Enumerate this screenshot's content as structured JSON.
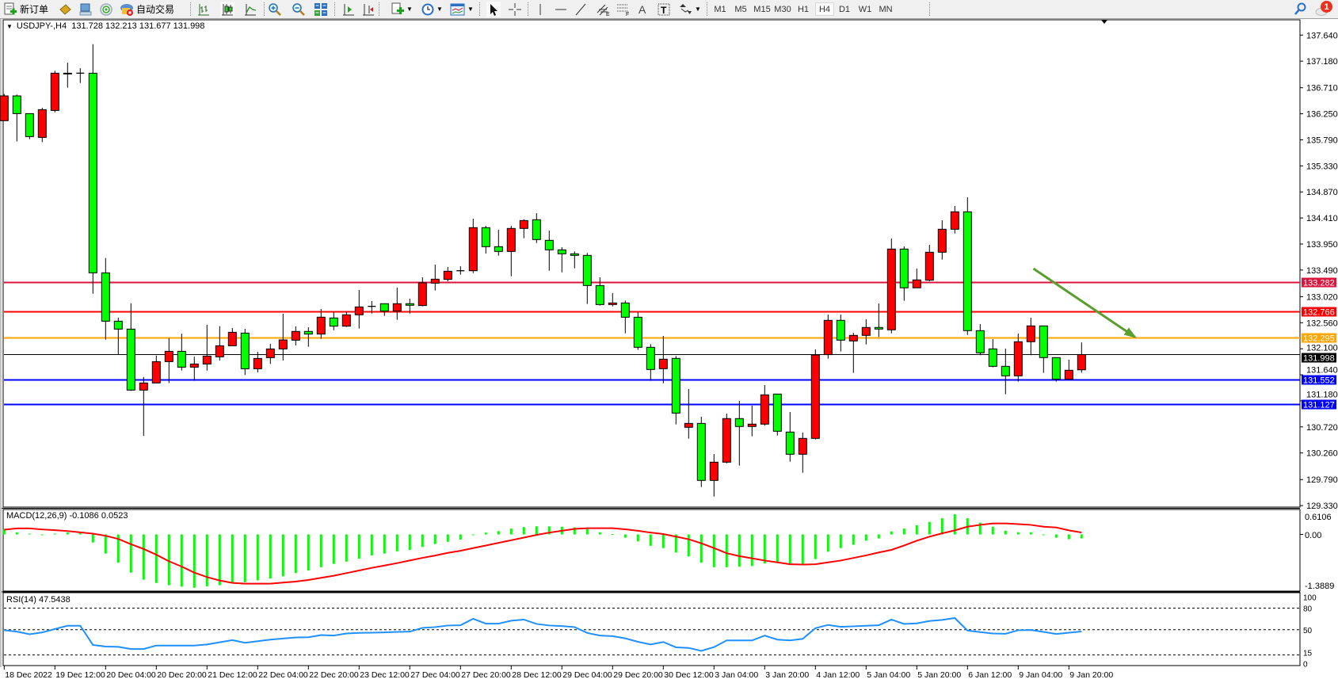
{
  "toolbar": {
    "new_order_label": "新订单",
    "auto_trade_label": "自动交易",
    "timeframes": [
      "M1",
      "M5",
      "M15",
      "M30",
      "H1",
      "H4",
      "D1",
      "W1",
      "MN"
    ],
    "active_timeframe": "H4",
    "notification_count": "1",
    "icons": [
      "new-order-icon",
      "gold-icon",
      "terminal-icon",
      "signals-icon",
      "auto-trade-icon",
      "bar-chart-icon",
      "candlestick-icon",
      "line-chart-icon",
      "zoom-in-icon",
      "zoom-out-icon",
      "tile-windows-icon",
      "chart-shift-icon",
      "autoscroll-icon",
      "new-chart-icon",
      "periods-icon",
      "templates-icon",
      "cursor-icon",
      "crosshair-icon",
      "vertical-line-icon",
      "horizontal-line-icon",
      "trendline-icon",
      "equidistant-channel-icon",
      "fibonacci-icon",
      "text-icon",
      "text-label-icon",
      "arrows-icon",
      "search-icon",
      "chat-icon"
    ]
  },
  "chart_title": "USDJPY-,H4  131.728 132.213 131.677 131.998",
  "colors": {
    "bull": "#ff0000",
    "bear": "#00ff00",
    "macd_hist": "#00ff00",
    "macd_signal": "#ff0000",
    "rsi": "#1e90ff",
    "arrow": "#5a9e2f"
  },
  "chart_data": [
    {
      "type": "candlestick",
      "symbol": "USDJPY-",
      "timeframe": "H4",
      "ohlc_readout": {
        "open": 131.728,
        "high": 132.213,
        "low": 131.677,
        "close": 131.998
      },
      "ylim": [
        129.33,
        137.64
      ],
      "y_ticks": [
        "137.640",
        "137.180",
        "136.710",
        "136.250",
        "135.790",
        "135.330",
        "134.870",
        "134.410",
        "133.950",
        "133.490",
        "133.020",
        "132.560",
        "132.100",
        "131.640",
        "131.180",
        "130.720",
        "130.260",
        "129.790",
        "129.330"
      ],
      "x_tick_labels": [
        "18 Dec 2022",
        "19 Dec 12:00",
        "20 Dec 04:00",
        "20 Dec 20:00",
        "21 Dec 12:00",
        "22 Dec 04:00",
        "22 Dec 20:00",
        "23 Dec 12:00",
        "27 Dec 04:00",
        "27 Dec 20:00",
        "28 Dec 12:00",
        "29 Dec 04:00",
        "29 Dec 20:00",
        "30 Dec 12:00",
        "3 Jan 04:00",
        "3 Jan 20:00",
        "4 Jan 12:00",
        "5 Jan 04:00",
        "5 Jan 20:00",
        "6 Jan 12:00",
        "9 Jan 04:00",
        "9 Jan 20:00"
      ],
      "horizontal_lines": [
        {
          "price": "133.282",
          "color": "#dc143c"
        },
        {
          "price": "132.766",
          "color": "#ff0000"
        },
        {
          "price": "132.295",
          "color": "#ffa500"
        },
        {
          "price": "131.998",
          "color": "#000000"
        },
        {
          "price": "131.552",
          "color": "#0000ff"
        },
        {
          "price": "131.127",
          "color": "#0000ff"
        }
      ],
      "arrow_annotation": {
        "from": [
          81.2,
          133.516
        ],
        "to": [
          89.2,
          132.31
        ]
      },
      "ohlc": [
        [
          136.128,
          136.6,
          136.128,
          136.566
        ],
        [
          136.566,
          136.589,
          135.763,
          136.253
        ],
        [
          136.253,
          136.253,
          135.801,
          135.847
        ],
        [
          135.833,
          136.356,
          135.749,
          136.323
        ],
        [
          136.309,
          137.009,
          136.276,
          136.967
        ],
        [
          136.967,
          137.153,
          136.71,
          136.96
        ],
        [
          136.967,
          137.055,
          136.794,
          136.967
        ],
        [
          136.967,
          137.48,
          133.072,
          133.441
        ],
        [
          133.441,
          133.702,
          132.26,
          132.587
        ],
        [
          132.587,
          132.648,
          131.99,
          132.447
        ],
        [
          132.447,
          132.904,
          131.356,
          131.37
        ],
        [
          131.37,
          131.6,
          130.563,
          131.496
        ],
        [
          131.496,
          131.98,
          131.496,
          131.873
        ],
        [
          131.873,
          132.289,
          131.496,
          132.055
        ],
        [
          132.055,
          132.368,
          131.715,
          131.775
        ],
        [
          131.775,
          131.96,
          131.533,
          131.831
        ],
        [
          131.831,
          132.522,
          131.715,
          131.971
        ],
        [
          131.957,
          132.499,
          131.892,
          132.153
        ],
        [
          132.153,
          132.466,
          132.153,
          132.391
        ],
        [
          132.377,
          132.452,
          131.636,
          131.747
        ],
        [
          131.747,
          132.046,
          131.682,
          131.929
        ],
        [
          131.943,
          132.186,
          131.831,
          132.097
        ],
        [
          132.097,
          132.718,
          131.892,
          132.256
        ],
        [
          132.252,
          132.494,
          132.158,
          132.406
        ],
        [
          132.406,
          132.48,
          132.135,
          132.359
        ],
        [
          132.359,
          132.802,
          132.275,
          132.658
        ],
        [
          132.644,
          132.755,
          132.429,
          132.499
        ],
        [
          132.499,
          132.746,
          132.485,
          132.7
        ],
        [
          132.7,
          133.138,
          132.457,
          132.839
        ],
        [
          132.849,
          132.942,
          132.723,
          132.849
        ],
        [
          132.896,
          132.896,
          132.681,
          132.765
        ],
        [
          132.765,
          133.18,
          132.611,
          132.896
        ],
        [
          132.896,
          132.984,
          132.723,
          132.868
        ],
        [
          132.863,
          133.362,
          132.849,
          133.264
        ],
        [
          133.259,
          133.586,
          133.129,
          133.329
        ],
        [
          133.325,
          133.544,
          133.292,
          133.469
        ],
        [
          133.478,
          133.558,
          133.408,
          133.478
        ],
        [
          133.478,
          134.397,
          133.437,
          134.239
        ],
        [
          134.239,
          134.271,
          133.782,
          133.903
        ],
        [
          133.903,
          134.201,
          133.744,
          133.819
        ],
        [
          133.819,
          134.271,
          133.38,
          134.225
        ],
        [
          134.225,
          134.388,
          134.052,
          134.365
        ],
        [
          134.379,
          134.495,
          133.968,
          134.029
        ],
        [
          134.015,
          134.187,
          133.478,
          133.847
        ],
        [
          133.847,
          133.894,
          133.45,
          133.777
        ],
        [
          133.777,
          133.819,
          133.52,
          133.749
        ],
        [
          133.749,
          133.791,
          132.891,
          133.217
        ],
        [
          133.217,
          133.362,
          132.863,
          132.881
        ],
        [
          132.881,
          133.082,
          132.849,
          132.909
        ],
        [
          132.909,
          132.951,
          132.373,
          132.657
        ],
        [
          132.657,
          132.746,
          132.079,
          132.126
        ],
        [
          132.126,
          132.182,
          131.533,
          131.734
        ],
        [
          131.748,
          132.326,
          131.491,
          131.916
        ],
        [
          131.93,
          131.972,
          130.764,
          130.964
        ],
        [
          130.713,
          131.389,
          130.512,
          130.782
        ],
        [
          130.782,
          130.899,
          129.658,
          129.775
        ],
        [
          129.775,
          130.241,
          129.491,
          130.097
        ],
        [
          130.097,
          130.955,
          130.078,
          130.867
        ],
        [
          130.867,
          131.179,
          130.036,
          130.727
        ],
        [
          130.727,
          131.095,
          130.554,
          130.769
        ],
        [
          130.769,
          131.459,
          130.741,
          131.286
        ],
        [
          131.3,
          131.3,
          130.568,
          130.643
        ],
        [
          130.629,
          130.983,
          130.106,
          130.237
        ],
        [
          130.237,
          130.62,
          129.91,
          130.517
        ],
        [
          130.517,
          132.089,
          130.498,
          131.99
        ],
        [
          131.996,
          132.704,
          131.926,
          132.602
        ],
        [
          132.602,
          132.704,
          132.052,
          132.252
        ],
        [
          132.238,
          132.383,
          131.674,
          132.336
        ],
        [
          132.336,
          132.62,
          132.177,
          132.476
        ],
        [
          132.476,
          132.9,
          132.308,
          132.448
        ],
        [
          132.434,
          134.048,
          132.373,
          133.861
        ],
        [
          133.861,
          133.908,
          132.947,
          133.176
        ],
        [
          133.176,
          133.516,
          133.176,
          133.316
        ],
        [
          133.311,
          133.936,
          133.292,
          133.805
        ],
        [
          133.805,
          134.369,
          133.675,
          134.211
        ],
        [
          134.211,
          134.621,
          134.136,
          134.519
        ],
        [
          134.519,
          134.775,
          132.345,
          132.42
        ],
        [
          132.42,
          132.537,
          131.986,
          132.028
        ],
        [
          132.098,
          132.271,
          131.772,
          131.79
        ],
        [
          131.79,
          132.103,
          131.296,
          131.622
        ],
        [
          131.622,
          132.369,
          131.52,
          132.224
        ],
        [
          132.224,
          132.648,
          131.986,
          132.504
        ],
        [
          132.504,
          132.504,
          131.674,
          131.944
        ],
        [
          131.944,
          131.944,
          131.52,
          131.562
        ],
        [
          131.562,
          131.907,
          131.562,
          131.72
        ],
        [
          131.728,
          132.213,
          131.677,
          131.998
        ]
      ]
    },
    {
      "type": "bar+line",
      "label": "MACD(12,26,9) -0.1086 0.0523",
      "ylim": [
        -1.3889,
        0.6106
      ],
      "y_ticks": [
        "0.6106",
        "0.00",
        "-1.3889"
      ],
      "histogram": [
        0.143,
        0.057,
        0.02,
        -0.01,
        0.02,
        0.057,
        0.04,
        -0.22,
        -0.52,
        -0.77,
        -1.04,
        -1.23,
        -1.32,
        -1.38,
        -1.42,
        -1.45,
        -1.41,
        -1.38,
        -1.32,
        -1.3,
        -1.25,
        -1.2,
        -1.14,
        -1.05,
        -0.98,
        -0.89,
        -0.8,
        -0.74,
        -0.66,
        -0.57,
        -0.52,
        -0.46,
        -0.42,
        -0.34,
        -0.26,
        -0.2,
        -0.14,
        -0.01,
        0.05,
        0.09,
        0.16,
        0.2,
        0.22,
        0.22,
        0.21,
        0.19,
        0.15,
        0.06,
        0.01,
        -0.09,
        -0.19,
        -0.31,
        -0.37,
        -0.49,
        -0.6,
        -0.77,
        -0.89,
        -0.89,
        -0.88,
        -0.86,
        -0.79,
        -0.76,
        -0.79,
        -0.8,
        -0.67,
        -0.47,
        -0.37,
        -0.28,
        -0.17,
        -0.11,
        0.08,
        0.16,
        0.25,
        0.34,
        0.44,
        0.55,
        0.44,
        0.32,
        0.21,
        0.1,
        0.06,
        0.06,
        -0.01,
        -0.09,
        -0.13,
        -0.1086
      ],
      "signal": [
        0.129,
        0.165,
        0.165,
        0.136,
        0.115,
        0.093,
        0.057,
        0.021,
        -0.036,
        -0.122,
        -0.265,
        -0.394,
        -0.551,
        -0.73,
        -0.873,
        -1.038,
        -1.16,
        -1.253,
        -1.317,
        -1.339,
        -1.339,
        -1.339,
        -1.31,
        -1.282,
        -1.239,
        -1.181,
        -1.124,
        -1.052,
        -0.981,
        -0.909,
        -0.845,
        -0.78,
        -0.709,
        -0.637,
        -0.573,
        -0.501,
        -0.444,
        -0.372,
        -0.301,
        -0.229,
        -0.158,
        -0.086,
        -0.014,
        0.05,
        0.1,
        0.15,
        0.17,
        0.17,
        0.17,
        0.14,
        0.1,
        0.05,
        0.01,
        -0.06,
        -0.13,
        -0.24,
        -0.37,
        -0.51,
        -0.59,
        -0.65,
        -0.71,
        -0.76,
        -0.81,
        -0.82,
        -0.81,
        -0.76,
        -0.71,
        -0.64,
        -0.57,
        -0.49,
        -0.42,
        -0.3,
        -0.17,
        -0.06,
        0.03,
        0.11,
        0.21,
        0.26,
        0.3,
        0.3,
        0.28,
        0.26,
        0.21,
        0.19,
        0.11,
        0.0523
      ]
    },
    {
      "type": "line",
      "label": "RSI(14) 47.5438",
      "ylim": [
        0,
        100
      ],
      "y_ticks": [
        "100",
        "80",
        "50",
        "15",
        "0"
      ],
      "levels": [
        80,
        50,
        15
      ],
      "values": [
        49.3,
        47.4,
        43.7,
        46.3,
        51,
        55.6,
        55.6,
        28.9,
        26.7,
        26.3,
        23.3,
        23.3,
        28.1,
        28.1,
        28.1,
        28.1,
        29.6,
        32.6,
        35.6,
        31.9,
        34.1,
        36.3,
        37.8,
        39.3,
        39.6,
        42.6,
        41.9,
        44.8,
        45.6,
        45.9,
        46.3,
        47,
        47.4,
        52.6,
        53.7,
        55.9,
        56.3,
        65.2,
        58.5,
        58.5,
        62.6,
        64.1,
        58.1,
        55.9,
        55.2,
        53.7,
        45.6,
        41.9,
        41.1,
        38.1,
        33.3,
        29.6,
        33,
        25.6,
        24.8,
        20.7,
        25.9,
        35.2,
        35.2,
        35.2,
        41.9,
        36.3,
        35.2,
        37.4,
        52.2,
        56.7,
        54.1,
        54.8,
        55.6,
        56.3,
        64.1,
        58.1,
        58.9,
        62.2,
        63.7,
        66.3,
        48.9,
        46.7,
        44.8,
        44.4,
        49.3,
        49.6,
        47,
        44.1,
        45.9,
        47.5438
      ]
    }
  ]
}
